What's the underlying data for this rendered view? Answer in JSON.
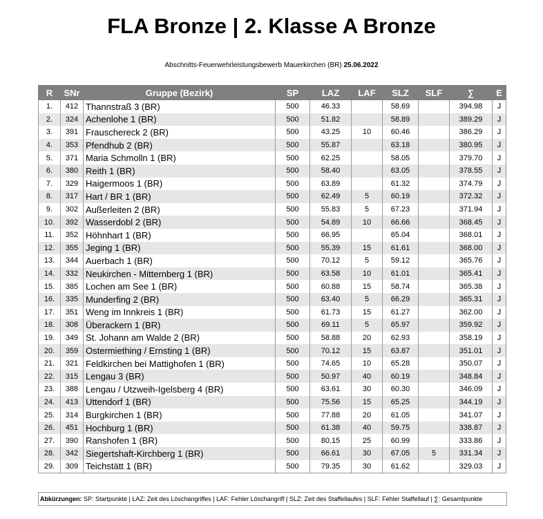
{
  "header": {
    "title": "FLA Bronze | 2. Klasse A Bronze",
    "subtitle": "Abschnitts-Feuerwehrleistungsbewerb Mauerkirchen (BR)",
    "date": "25.06.2022"
  },
  "table": {
    "columns": [
      "R",
      "SNr",
      "Gruppe (Bezirk)",
      "SP",
      "LAZ",
      "LAF",
      "SLZ",
      "SLF",
      "∑",
      "E"
    ],
    "rows": [
      [
        "1.",
        "412",
        "Thannstraß 3 (BR)",
        "500",
        "46.33",
        null,
        "58.69",
        null,
        "394.98",
        "J"
      ],
      [
        "2.",
        "324",
        "Achenlohe 1 (BR)",
        "500",
        "51.82",
        null,
        "58.89",
        null,
        "389.29",
        "J"
      ],
      [
        "3.",
        "391",
        "Frauschereck 2 (BR)",
        "500",
        "43.25",
        "10",
        "60.46",
        null,
        "386.29",
        "J"
      ],
      [
        "4.",
        "353",
        "Pfendhub 2 (BR)",
        "500",
        "55.87",
        null,
        "63.18",
        null,
        "380.95",
        "J"
      ],
      [
        "5.",
        "371",
        "Maria Schmolln 1 (BR)",
        "500",
        "62.25",
        null,
        "58.05",
        null,
        "379.70",
        "J"
      ],
      [
        "6.",
        "380",
        "Reith 1 (BR)",
        "500",
        "58.40",
        null,
        "63.05",
        null,
        "378.55",
        "J"
      ],
      [
        "7.",
        "329",
        "Haigermoos 1 (BR)",
        "500",
        "63.89",
        null,
        "61.32",
        null,
        "374.79",
        "J"
      ],
      [
        "8.",
        "317",
        "Hart / BR 1 (BR)",
        "500",
        "62.49",
        "5",
        "60.19",
        null,
        "372.32",
        "J"
      ],
      [
        "9.",
        "302",
        "Außerleiten 2 (BR)",
        "500",
        "55.83",
        "5",
        "67.23",
        null,
        "371.94",
        "J"
      ],
      [
        "10.",
        "392",
        "Wasserdobl 2 (BR)",
        "500",
        "54.89",
        "10",
        "66.66",
        null,
        "368.45",
        "J"
      ],
      [
        "11.",
        "352",
        "Höhnhart 1 (BR)",
        "500",
        "66.95",
        null,
        "65.04",
        null,
        "368.01",
        "J"
      ],
      [
        "12.",
        "355",
        "Jeging 1 (BR)",
        "500",
        "55.39",
        "15",
        "61.61",
        null,
        "368.00",
        "J"
      ],
      [
        "13.",
        "344",
        "Auerbach 1 (BR)",
        "500",
        "70.12",
        "5",
        "59.12",
        null,
        "365.76",
        "J"
      ],
      [
        "14.",
        "332",
        "Neukirchen - Mitternberg 1 (BR)",
        "500",
        "63.58",
        "10",
        "61.01",
        null,
        "365.41",
        "J"
      ],
      [
        "15.",
        "385",
        "Lochen am See 1 (BR)",
        "500",
        "60.88",
        "15",
        "58.74",
        null,
        "365.38",
        "J"
      ],
      [
        "16.",
        "335",
        "Munderfing 2 (BR)",
        "500",
        "63.40",
        "5",
        "66.29",
        null,
        "365.31",
        "J"
      ],
      [
        "17.",
        "351",
        "Weng im Innkreis 1 (BR)",
        "500",
        "61.73",
        "15",
        "61.27",
        null,
        "362.00",
        "J"
      ],
      [
        "18.",
        "308",
        "Überackern 1 (BR)",
        "500",
        "69.11",
        "5",
        "65.97",
        null,
        "359.92",
        "J"
      ],
      [
        "19.",
        "349",
        "St. Johann am Walde 2 (BR)",
        "500",
        "58.88",
        "20",
        "62.93",
        null,
        "358.19",
        "J"
      ],
      [
        "20.",
        "359",
        "Ostermiething / Ernsting 1 (BR)",
        "500",
        "70.12",
        "15",
        "63.87",
        null,
        "351.01",
        "J"
      ],
      [
        "21.",
        "321",
        "Feldkirchen bei Mattighofen 1 (BR)",
        "500",
        "74.65",
        "10",
        "65.28",
        null,
        "350.07",
        "J"
      ],
      [
        "22.",
        "315",
        "Lengau 3 (BR)",
        "500",
        "50.97",
        "40",
        "60.19",
        null,
        "348.84",
        "J"
      ],
      [
        "23.",
        "388",
        "Lengau / Utzweih-Igelsberg 4 (BR)",
        "500",
        "63.61",
        "30",
        "60.30",
        null,
        "346.09",
        "J"
      ],
      [
        "24.",
        "413",
        "Uttendorf 1 (BR)",
        "500",
        "75.56",
        "15",
        "65.25",
        null,
        "344.19",
        "J"
      ],
      [
        "25.",
        "314",
        "Burgkirchen 1 (BR)",
        "500",
        "77.88",
        "20",
        "61.05",
        null,
        "341.07",
        "J"
      ],
      [
        "26.",
        "451",
        "Hochburg 1 (BR)",
        "500",
        "61.38",
        "40",
        "59.75",
        null,
        "338.87",
        "J"
      ],
      [
        "27.",
        "390",
        "Ranshofen 1 (BR)",
        "500",
        "80.15",
        "25",
        "60.99",
        null,
        "333.86",
        "J"
      ],
      [
        "28.",
        "342",
        "Siegertshaft-Kirchberg 1 (BR)",
        "500",
        "66.61",
        "30",
        "67.05",
        "5",
        "331.34",
        "J"
      ],
      [
        "29.",
        "309",
        "Teichstätt 1 (BR)",
        "500",
        "79.35",
        "30",
        "61.62",
        null,
        "329.03",
        "J"
      ]
    ]
  },
  "footer": {
    "label": "Abkürzungen:",
    "text": "SP: Startpunkte | LAZ: Zeit des Löschangriffes | LAF: Fehler Löschangriff | SLZ: Zeit des Staffellaufes | SLF: Fehler Staffellauf | ∑: Gesamtpunkte"
  }
}
